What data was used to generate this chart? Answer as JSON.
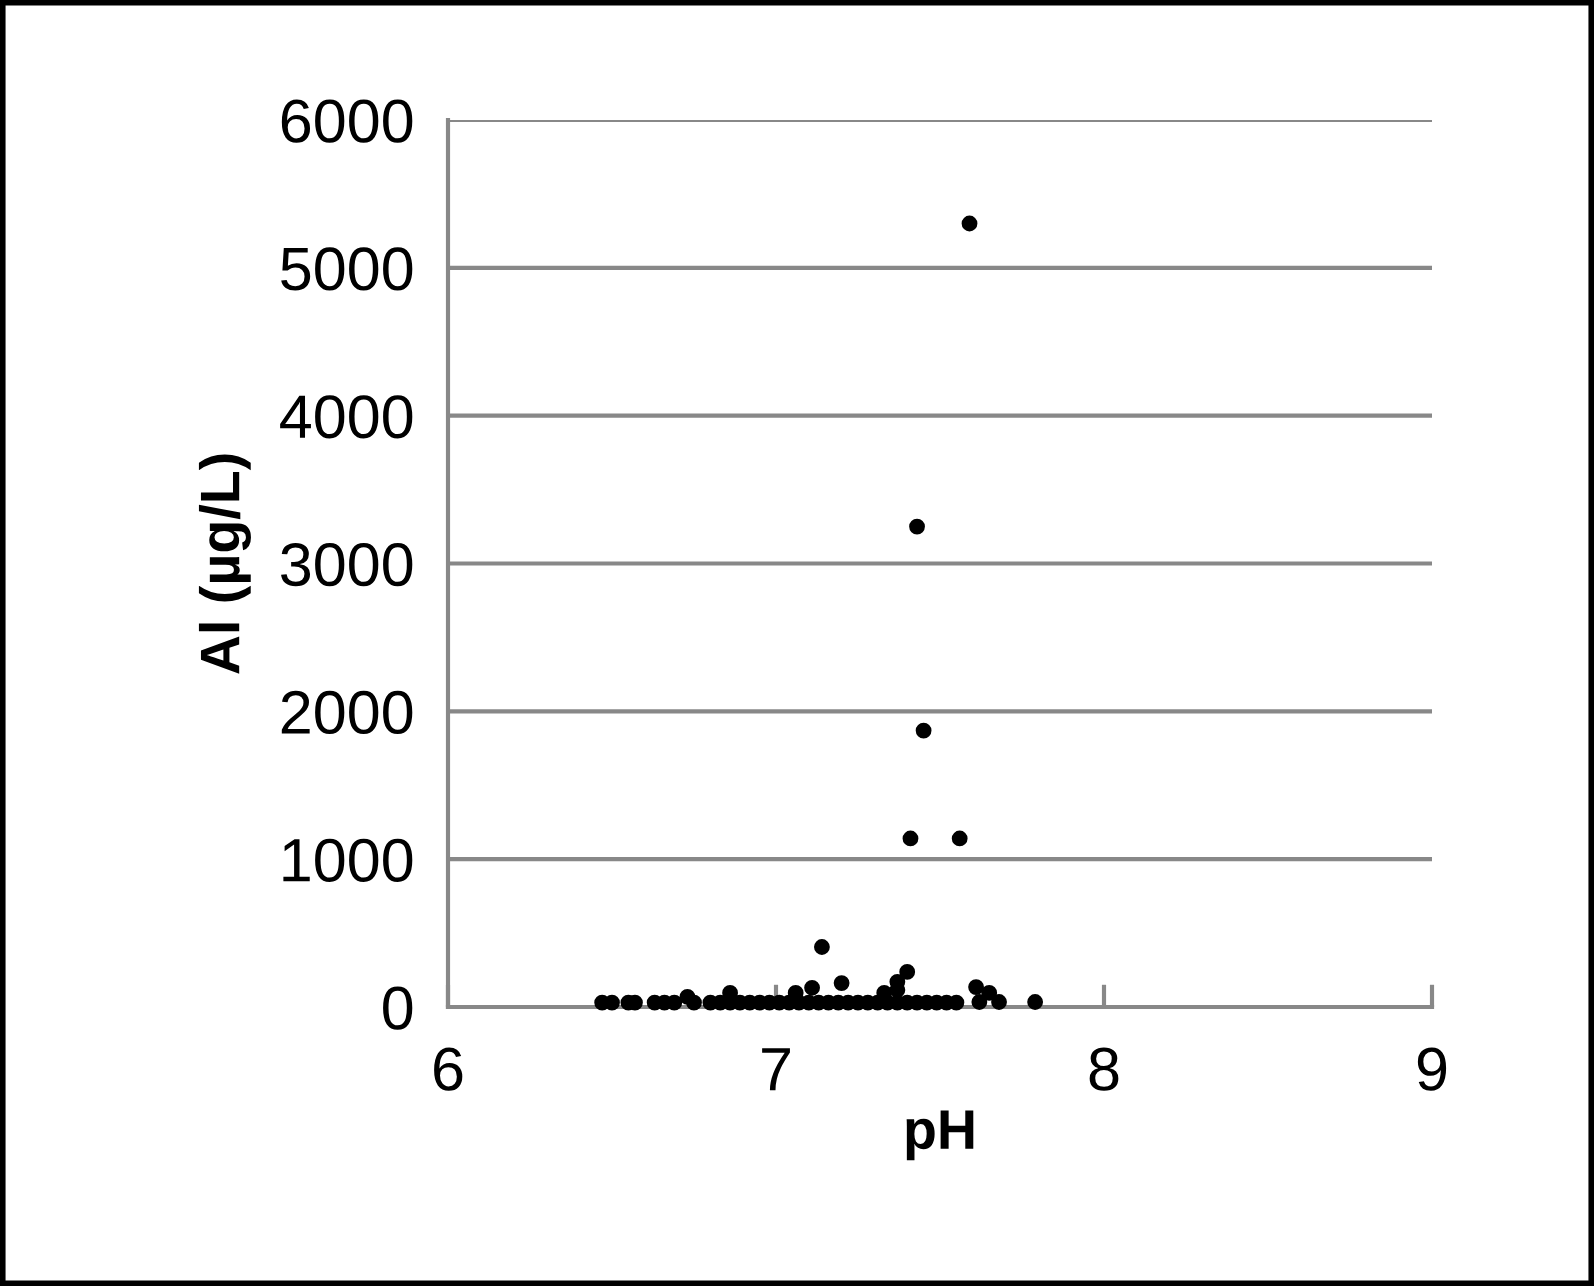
{
  "chart_data": {
    "type": "scatter",
    "xlabel": "pH",
    "ylabel": "Al (µg/L)",
    "x": [
      7.59,
      7.43,
      7.45,
      7.41,
      7.56,
      7.14,
      7.4,
      7.37,
      7.2,
      7.11,
      7.61,
      7.65,
      6.86,
      7.79,
      7.62,
      7.68,
      6.73,
      7.06,
      7.33,
      7.37,
      6.47,
      6.5,
      6.55,
      6.57,
      6.63,
      6.66,
      6.69,
      6.75,
      6.8,
      6.83,
      6.86,
      6.89,
      6.92,
      6.95,
      6.98,
      7.01,
      7.04,
      7.07,
      7.1,
      7.13,
      7.16,
      7.19,
      7.22,
      7.25,
      7.28,
      7.31,
      7.34,
      7.37,
      7.4,
      7.43,
      7.46,
      7.49,
      7.52,
      7.55
    ],
    "values": [
      5300,
      3250,
      1870,
      1140,
      1140,
      406,
      237,
      170,
      162,
      130,
      135,
      95,
      95,
      34,
      34,
      34,
      68,
      95,
      95,
      115,
      30,
      30,
      30,
      30,
      30,
      30,
      30,
      30,
      30,
      30,
      30,
      30,
      30,
      30,
      30,
      30,
      30,
      30,
      30,
      30,
      30,
      30,
      30,
      30,
      30,
      30,
      30,
      30,
      30,
      30,
      30,
      30,
      30,
      30
    ],
    "color": "#000000",
    "marker": "circle",
    "xlim": [
      6,
      9
    ],
    "ylim": [
      0,
      6000
    ],
    "xticks": [
      6,
      7,
      8,
      9
    ],
    "yticks": [
      0,
      1000,
      2000,
      3000,
      4000,
      5000,
      6000
    ],
    "grid": "y",
    "legend": false
  }
}
